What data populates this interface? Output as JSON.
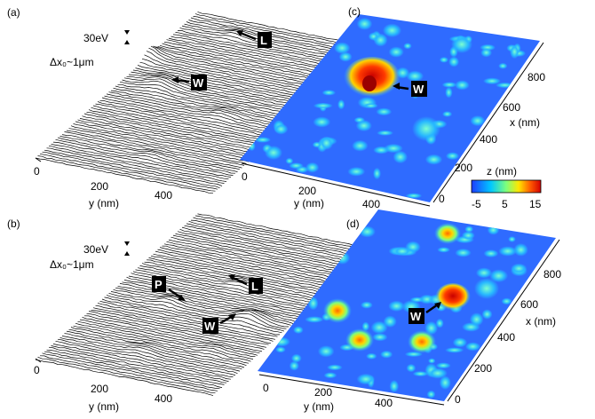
{
  "figure": {
    "panels": [
      {
        "id": "a",
        "label": "(a)",
        "scale_bar": "30eV",
        "spacing_label": "Δx₀~1μm",
        "x_axis_label": "y (nm)",
        "x_ticks": [
          "0",
          "200",
          "400"
        ],
        "markers": [
          "L",
          "W"
        ]
      },
      {
        "id": "b",
        "label": "(b)",
        "scale_bar": "30eV",
        "spacing_label": "Δx₀~1μm",
        "x_axis_label": "y (nm)",
        "x_ticks": [
          "0",
          "200",
          "400"
        ],
        "markers": [
          "P",
          "L",
          "W"
        ]
      },
      {
        "id": "c",
        "label": "(c)",
        "x_axis_label": "y (nm)",
        "y_axis_label": "x (nm)",
        "x_ticks": [
          "0",
          "200",
          "400"
        ],
        "y_ticks": [
          "0",
          "200",
          "400",
          "600",
          "800"
        ],
        "markers": [
          "W"
        ]
      },
      {
        "id": "d",
        "label": "(d)",
        "x_axis_label": "y (nm)",
        "y_axis_label": "x (nm)",
        "x_ticks": [
          "0",
          "200",
          "400"
        ],
        "y_ticks": [
          "0",
          "200",
          "400",
          "600",
          "800"
        ],
        "markers": [
          "W"
        ]
      }
    ],
    "colorbar": {
      "label": "z (nm)",
      "ticks": [
        "-5",
        "5",
        "15"
      ],
      "colors": [
        "#1e3cff",
        "#00c8ff",
        "#7dff7d",
        "#ffe600",
        "#ff5a00",
        "#d20000"
      ]
    }
  }
}
